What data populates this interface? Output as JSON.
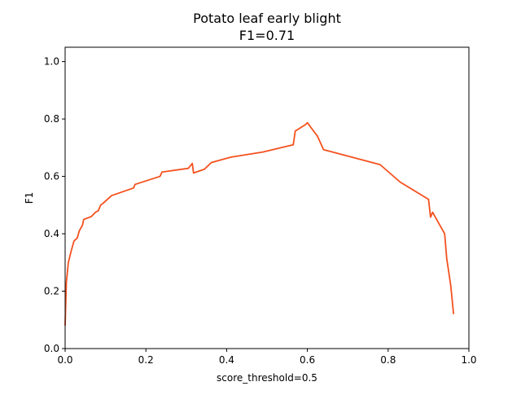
{
  "chart_data": {
    "type": "line",
    "title": "Potato leaf early blight",
    "subtitle": "F1=0.71",
    "xlabel": "score_threshold=0.5",
    "ylabel": "F1",
    "xlim": [
      0.0,
      1.0
    ],
    "ylim": [
      0.0,
      1.05
    ],
    "x_ticks": [
      "0.0",
      "0.2",
      "0.4",
      "0.6",
      "0.8",
      "1.0"
    ],
    "y_ticks": [
      "0.0",
      "0.2",
      "0.4",
      "0.6",
      "0.8",
      "1.0"
    ],
    "grid": false,
    "line_color": "#f4511e",
    "series": [
      {
        "x": [
          0.0,
          0.003,
          0.008,
          0.015,
          0.022,
          0.03,
          0.035,
          0.043,
          0.046,
          0.065,
          0.075,
          0.082,
          0.088,
          0.093,
          0.115,
          0.17,
          0.173,
          0.235,
          0.24,
          0.305,
          0.315,
          0.318,
          0.345,
          0.362,
          0.41,
          0.49,
          0.565,
          0.57,
          0.595,
          0.6,
          0.625,
          0.64,
          0.78,
          0.83,
          0.9,
          0.905,
          0.91,
          0.94,
          0.945,
          0.955,
          0.962
        ],
        "y": [
          0.08,
          0.23,
          0.3,
          0.34,
          0.375,
          0.385,
          0.41,
          0.43,
          0.45,
          0.46,
          0.475,
          0.48,
          0.5,
          0.505,
          0.533,
          0.56,
          0.572,
          0.6,
          0.615,
          0.628,
          0.645,
          0.612,
          0.625,
          0.648,
          0.667,
          0.685,
          0.71,
          0.758,
          0.78,
          0.787,
          0.74,
          0.693,
          0.641,
          0.58,
          0.52,
          0.458,
          0.475,
          0.4,
          0.315,
          0.22,
          0.12
        ]
      }
    ]
  }
}
